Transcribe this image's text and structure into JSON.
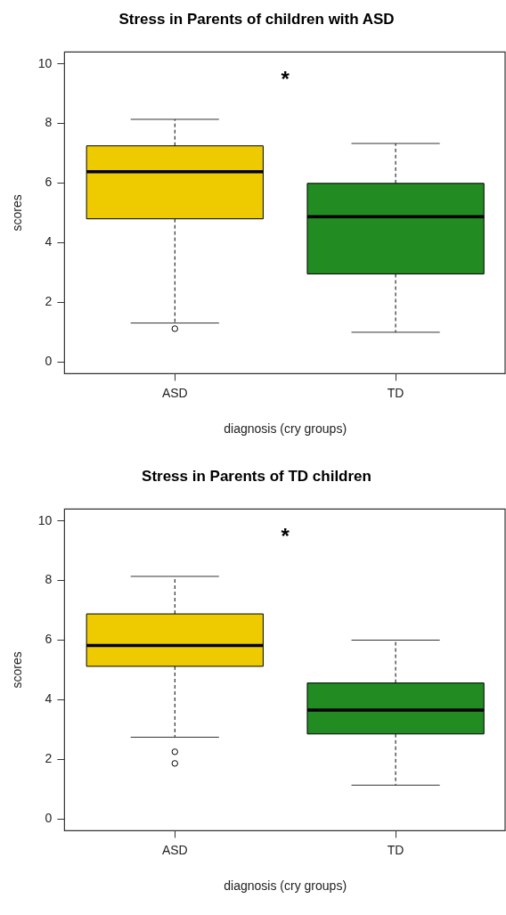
{
  "chart_data": [
    {
      "type": "box",
      "title": "Stress in Parents of children with ASD",
      "xlabel": "diagnosis (cry groups)",
      "ylabel": "scores",
      "categories": [
        "ASD",
        "TD"
      ],
      "colors": [
        "#eecb00",
        "#228b22"
      ],
      "boxes": [
        {
          "low": 1.3,
          "q1": 4.8,
          "median": 6.38,
          "q3": 7.25,
          "high": 8.14,
          "outliers": [
            1.11
          ]
        },
        {
          "low": 0.99,
          "q1": 2.95,
          "median": 4.87,
          "q3": 5.99,
          "high": 7.33
        }
      ],
      "ylim": [
        -0.4,
        10.4
      ],
      "yticks": [
        0,
        2,
        4,
        6,
        8,
        10
      ],
      "grid": false,
      "annotations": [
        "*"
      ]
    },
    {
      "type": "box",
      "title": "Stress in Parents of TD children",
      "xlabel": "diagnosis (cry groups)",
      "ylabel": "scores",
      "categories": [
        "ASD",
        "TD"
      ],
      "colors": [
        "#eecb00",
        "#228b22"
      ],
      "boxes": [
        {
          "low": 2.74,
          "q1": 5.12,
          "median": 5.82,
          "q3": 6.88,
          "high": 8.14,
          "outliers": [
            2.25,
            1.86
          ]
        },
        {
          "low": 1.13,
          "q1": 2.85,
          "median": 3.65,
          "q3": 4.56,
          "high": 6.0
        }
      ],
      "ylim": [
        -0.4,
        10.4
      ],
      "yticks": [
        0,
        2,
        4,
        6,
        8,
        10
      ],
      "grid": false,
      "annotations": [
        "*"
      ]
    }
  ]
}
